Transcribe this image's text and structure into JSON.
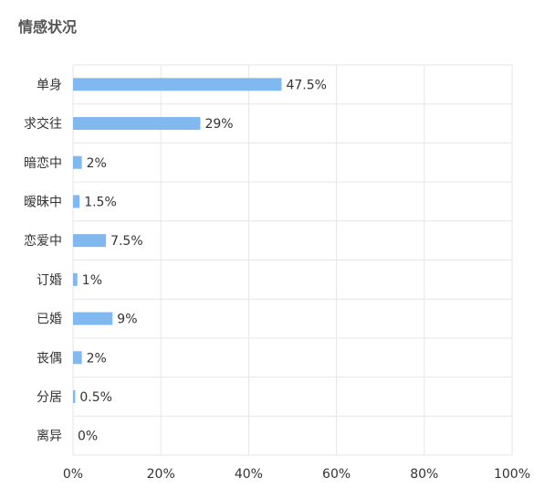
{
  "title": "情感状况",
  "chart_data": {
    "type": "bar",
    "orientation": "horizontal",
    "title": "情感状况",
    "categories": [
      "单身",
      "求交往",
      "暗恋中",
      "暧昧中",
      "恋爱中",
      "订婚",
      "已婚",
      "丧偶",
      "分居",
      "离异"
    ],
    "values": [
      47.5,
      29,
      2,
      1.5,
      7.5,
      1,
      9,
      2,
      0.5,
      0
    ],
    "value_labels": [
      "47.5%",
      "29%",
      "2%",
      "1.5%",
      "7.5%",
      "1%",
      "9%",
      "2%",
      "0.5%",
      "0%"
    ],
    "xlim": [
      0,
      100
    ],
    "x_ticks": [
      0,
      20,
      40,
      60,
      80,
      100
    ],
    "x_tick_labels": [
      "0%",
      "20%",
      "40%",
      "60%",
      "80%",
      "100%"
    ],
    "xlabel": "",
    "ylabel": "",
    "grid": true,
    "legend": "none",
    "bar_color": "#82b8f0",
    "grid_color": "#e6e6e6"
  }
}
